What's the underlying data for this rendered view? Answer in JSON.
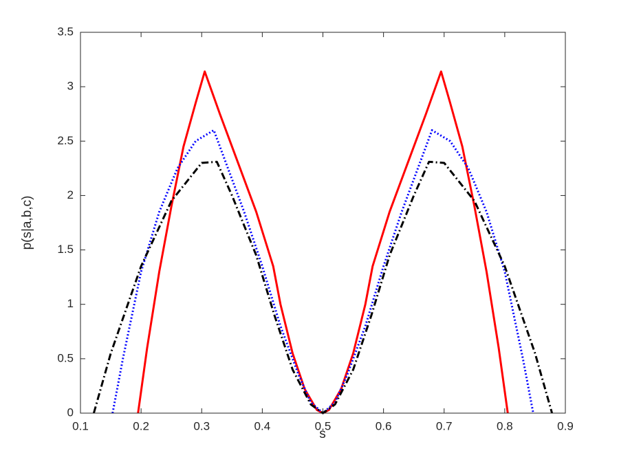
{
  "chart_data": {
    "type": "line",
    "x_label": "s",
    "y_label": "p(s|a,b,c)",
    "xlim": [
      0.1,
      0.9
    ],
    "xticks": [
      0.1,
      0.2,
      0.3,
      0.4,
      0.5,
      0.6,
      0.7,
      0.8,
      0.9
    ],
    "ylim": [
      0,
      3.5
    ],
    "yticks": [
      0,
      0.5,
      1,
      1.5,
      2,
      2.5,
      3,
      3.5
    ],
    "grid": false,
    "series": [
      {
        "color": "#ff0000",
        "linestyle": "solid",
        "x": [
          0.195,
          0.21,
          0.23,
          0.25,
          0.27,
          0.29,
          0.305,
          0.33,
          0.36,
          0.39,
          0.418,
          0.43,
          0.45,
          0.47,
          0.49,
          0.5,
          0.51,
          0.53,
          0.55,
          0.57,
          0.582,
          0.61,
          0.64,
          0.67,
          0.695,
          0.71,
          0.73,
          0.75,
          0.77,
          0.79,
          0.805
        ],
        "values": [
          0,
          0.6,
          1.3,
          1.9,
          2.45,
          2.85,
          3.14,
          2.75,
          2.3,
          1.85,
          1.35,
          1.0,
          0.55,
          0.22,
          0.03,
          0,
          0.03,
          0.22,
          0.55,
          1.0,
          1.35,
          1.85,
          2.3,
          2.75,
          3.14,
          2.85,
          2.45,
          1.9,
          1.3,
          0.6,
          0
        ]
      },
      {
        "color": "#0000ff",
        "linestyle": "dotted",
        "x": [
          0.153,
          0.17,
          0.2,
          0.23,
          0.26,
          0.29,
          0.32,
          0.34,
          0.37,
          0.4,
          0.43,
          0.46,
          0.48,
          0.5,
          0.52,
          0.54,
          0.57,
          0.6,
          0.63,
          0.66,
          0.68,
          0.71,
          0.74,
          0.77,
          0.8,
          0.83,
          0.847
        ],
        "values": [
          0,
          0.5,
          1.3,
          1.85,
          2.25,
          2.5,
          2.6,
          2.3,
          1.85,
          1.35,
          0.8,
          0.35,
          0.1,
          0,
          0.1,
          0.35,
          0.8,
          1.35,
          1.85,
          2.3,
          2.6,
          2.5,
          2.25,
          1.85,
          1.3,
          0.5,
          0
        ]
      },
      {
        "color": "#000000",
        "linestyle": "dashdot",
        "x": [
          0.122,
          0.15,
          0.2,
          0.25,
          0.3,
          0.325,
          0.35,
          0.39,
          0.42,
          0.45,
          0.48,
          0.5,
          0.52,
          0.55,
          0.58,
          0.61,
          0.65,
          0.675,
          0.7,
          0.75,
          0.8,
          0.85,
          0.878
        ],
        "values": [
          0,
          0.55,
          1.35,
          1.95,
          2.3,
          2.31,
          2.0,
          1.45,
          0.9,
          0.4,
          0.08,
          0,
          0.08,
          0.4,
          0.9,
          1.45,
          2.0,
          2.31,
          2.3,
          1.95,
          1.35,
          0.55,
          0
        ]
      }
    ]
  }
}
